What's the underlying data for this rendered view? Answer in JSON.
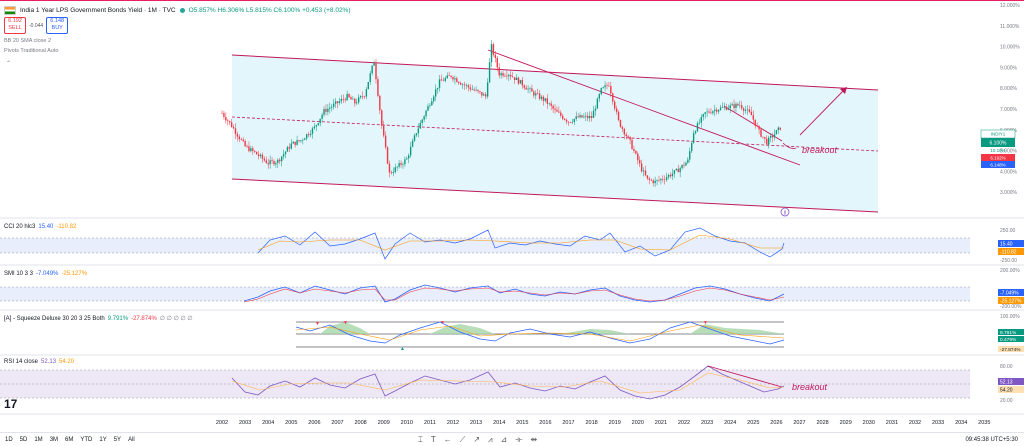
{
  "header": {
    "title": "India 1 Year LPS Government Bonds Yield · 1M · TVC",
    "ohlc": "O5.857% H6.306% L5.815% C6.100% +0.453 (+8.02%)",
    "sell_price": "6.192",
    "sell_label": "SELL",
    "spread": "-0.044",
    "buy_price": "6.148",
    "buy_label": "BUY"
  },
  "overlays": [
    "BB 20 SMA close 2",
    "Pivots Traditional Auto"
  ],
  "price_axis": {
    "ticks": [
      "12.000%",
      "11.000%",
      "10.000%",
      "9.000%",
      "8.000%",
      "7.000%",
      "6.000%",
      "5.000%",
      "4.000%",
      "3.000%"
    ],
    "last_labels": [
      "INDIY1",
      "6.100%",
      "10.10%",
      "6.192%",
      "6.148%"
    ]
  },
  "panes": {
    "cci": {
      "label": "CCI 20 hlc3",
      "v1": "15.40",
      "v2": "-110.82",
      "ticks": [
        "250.00",
        "0.00",
        "-250.00"
      ],
      "tags": [
        "15.40",
        "-110.82"
      ]
    },
    "smi": {
      "label": "SMI 10 3 3",
      "v1": "-7.049%",
      "v2": "-25.127%",
      "ticks": [
        "200.00%",
        "0.00%",
        "-200.00%"
      ],
      "tags": [
        "-7.049%",
        "-25.127%"
      ]
    },
    "sqz": {
      "label": "[A] - Squeeze Deluxe 30 20 3 25 Both",
      "v1": "9.791%",
      "v2": "-27.874%",
      "v3": "∅ ∅ ∅ ∅ ∅",
      "ticks": [
        "100.00%",
        "0.00%",
        "-100.00%"
      ],
      "tags": [
        "9.791%",
        "0.479%",
        "-27.874%"
      ]
    },
    "rsi": {
      "label": "RSI 14 close",
      "v1": "52.13",
      "v2": "54.20",
      "ticks": [
        "80.00",
        "50.00",
        "20.00"
      ],
      "tags": [
        "52.13",
        "54.20"
      ]
    }
  },
  "annotations": {
    "breakout_main": "breakout",
    "breakout_rsi": "breakout",
    "circle_marker": "⑧"
  },
  "time_axis": [
    "2002",
    "2003",
    "2004",
    "2005",
    "2006",
    "2007",
    "2008",
    "2009",
    "2010",
    "2011",
    "2012",
    "2013",
    "2014",
    "2015",
    "2016",
    "2017",
    "2018",
    "2019",
    "2020",
    "2021",
    "2022",
    "2023",
    "2024",
    "2025",
    "2026",
    "2027",
    "2028",
    "2029",
    "2030",
    "2031",
    "2032",
    "2033",
    "2034",
    "2035"
  ],
  "bottom_bar": {
    "ranges": [
      "1D",
      "5D",
      "1M",
      "3M",
      "6M",
      "YTD",
      "1Y",
      "5Y",
      "All"
    ],
    "clock": "09:45:38 UTC+5:30"
  },
  "colors": {
    "up": "#089981",
    "down": "#f23645",
    "channel_fill": "#e3f6fb",
    "channel_line": "#c2185b",
    "cci_line": "#2962ff",
    "signal_line": "#ff9800",
    "rsi_line": "#7e57c2",
    "rsi_band": "#ede7f6"
  },
  "chart_data": {
    "type": "candlestick",
    "ylabel": "",
    "ylim": [
      2.0,
      12.0
    ],
    "x_range": [
      "2002",
      "2035"
    ],
    "series": [
      {
        "x": [
          "2002-01",
          "2002-06",
          "2003-01",
          "2003-06",
          "2004-01",
          "2004-06",
          "2005-01",
          "2005-06",
          "2006-01",
          "2006-06",
          "2007-01",
          "2007-06",
          "2007-10",
          "2008-03",
          "2008-08",
          "2008-12",
          "2009-04",
          "2009-08",
          "2010-01",
          "2010-06",
          "2010-12",
          "2011-06",
          "2011-12",
          "2012-06",
          "2012-12",
          "2013-06",
          "2013-09",
          "2014-01",
          "2014-06",
          "2015-01",
          "2015-06",
          "2016-01",
          "2016-06",
          "2017-01",
          "2017-06",
          "2018-01",
          "2018-06",
          "2018-10",
          "2019-03",
          "2019-09",
          "2020-03",
          "2020-06",
          "2020-10",
          "2021-03",
          "2021-09",
          "2022-03",
          "2022-06",
          "2022-12",
          "2023-06",
          "2023-12",
          "2024-06",
          "2024-12",
          "2025-04",
          "2025-08",
          "2025-12",
          "2026-03"
        ],
        "values": [
          6.8,
          6.2,
          5.2,
          4.9,
          4.4,
          4.5,
          5.3,
          5.5,
          6.1,
          6.9,
          7.3,
          7.6,
          7.3,
          7.7,
          9.3,
          6.2,
          3.9,
          4.2,
          4.6,
          5.9,
          7.1,
          8.3,
          8.6,
          8.2,
          7.9,
          7.6,
          10.0,
          8.7,
          8.7,
          8.2,
          7.8,
          7.4,
          6.9,
          6.4,
          6.6,
          6.6,
          7.9,
          8.2,
          6.4,
          5.4,
          4.1,
          3.6,
          3.5,
          3.7,
          4.0,
          4.5,
          5.9,
          6.8,
          7.0,
          7.1,
          7.2,
          6.7,
          5.9,
          5.4,
          5.8,
          6.1
        ]
      }
    ],
    "last_value": 6.1
  }
}
